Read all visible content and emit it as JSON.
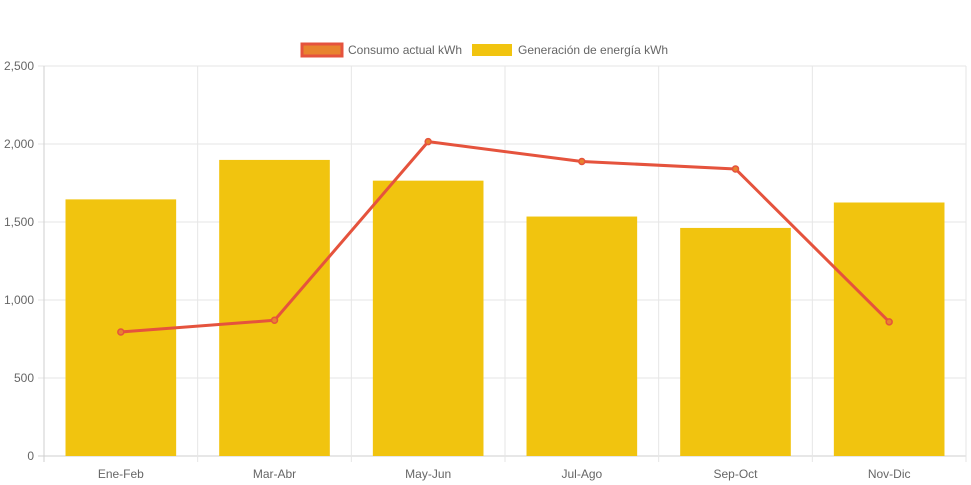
{
  "chart_data": {
    "type": "bar",
    "categories": [
      "Ene-Feb",
      "Mar-Abr",
      "May-Jun",
      "Jul-Ago",
      "Sep-Oct",
      "Nov-Dic"
    ],
    "series": [
      {
        "name": "Consumo actual kWh",
        "type": "line",
        "values": [
          795,
          870,
          2015,
          1888,
          1840,
          860
        ],
        "color": "#e5533d",
        "marker_color": "#e8832e"
      },
      {
        "name": "Generación de energía kWh",
        "type": "bar",
        "values": [
          1645,
          1898,
          1765,
          1535,
          1462,
          1625
        ],
        "color": "#f1c40f"
      }
    ],
    "yticks": [
      "0",
      "500",
      "1,000",
      "1,500",
      "2,000",
      "2,500"
    ],
    "ylim": [
      0,
      2500
    ],
    "title": "",
    "xlabel": "",
    "ylabel": "",
    "grid": true,
    "legend_position": "top-center"
  }
}
